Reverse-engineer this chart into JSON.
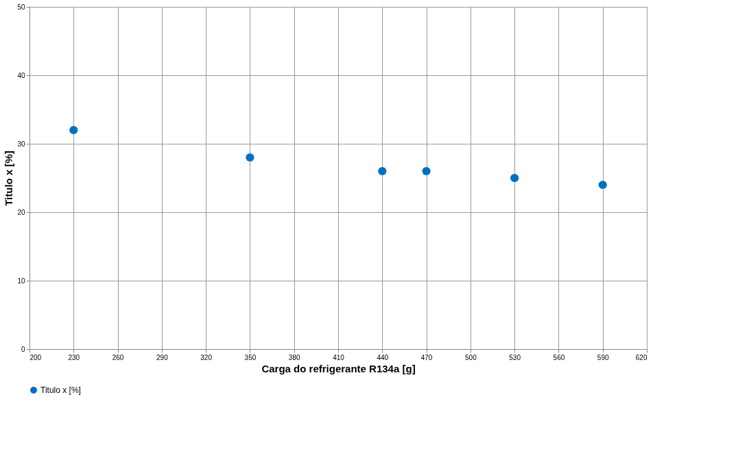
{
  "chart_data": {
    "type": "scatter",
    "xlabel": "Carga do refrigerante R134a [g]",
    "ylabel": "Titulo x [%]",
    "x": [
      230,
      350,
      440,
      470,
      530,
      590
    ],
    "series": [
      {
        "name": "Titulo x [%]",
        "color": "#0070c0",
        "values": [
          32,
          28,
          26,
          26,
          25,
          24
        ]
      }
    ],
    "xlim": [
      200,
      620
    ],
    "xticks": [
      200,
      230,
      260,
      290,
      320,
      350,
      380,
      410,
      440,
      470,
      500,
      530,
      560,
      590,
      620
    ],
    "ylim": [
      0,
      50
    ],
    "yticks": [
      0,
      10,
      20,
      30,
      40,
      50
    ],
    "grid": true,
    "legend": "bottom",
    "marker": "circle"
  }
}
